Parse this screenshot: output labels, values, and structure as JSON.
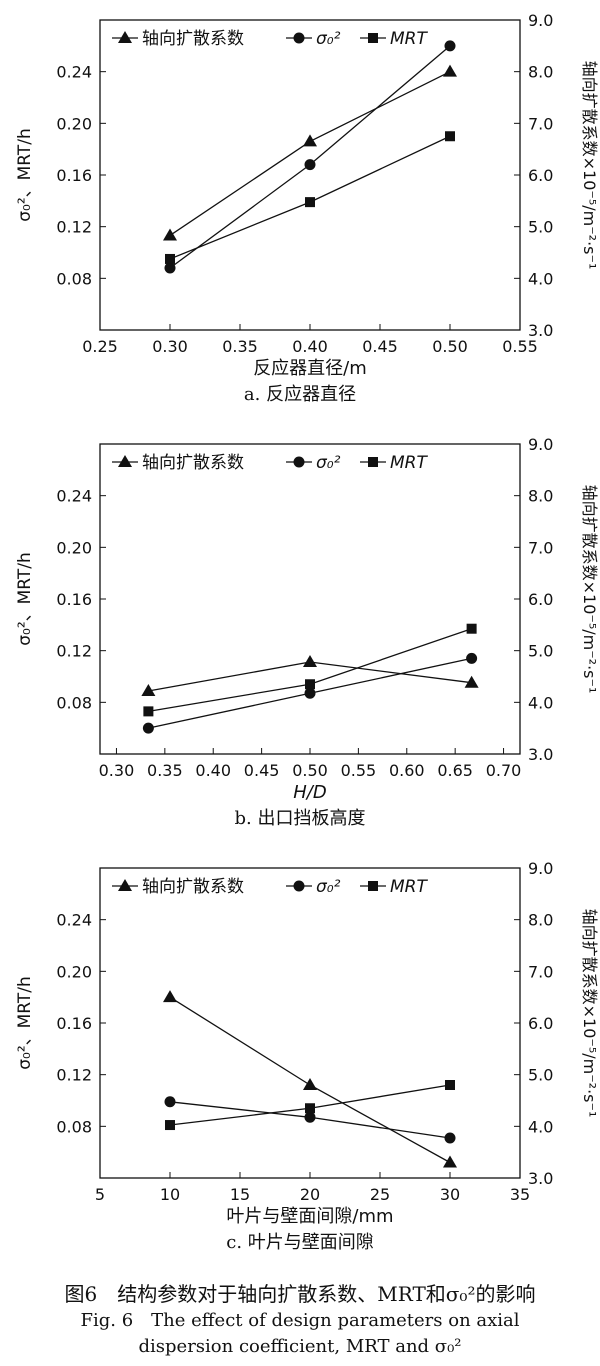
{
  "figure": {
    "caption_cn": "图6　结构参数对于轴向扩散系数、MRT和σ₀²的影响",
    "caption_en_line1": "Fig. 6　The effect of design parameters on axial",
    "caption_en_line2": "dispersion coefficient, MRT and σ₀²"
  },
  "colors": {
    "line": "#111111",
    "background": "#ffffff"
  },
  "chart_data": [
    {
      "type": "line",
      "panel_caption": "a. 反应器直径",
      "xlabel": "反应器直径/m",
      "ylabel_left": "σ₀²、MRT/h",
      "ylabel_right": "轴向扩散系数×10⁻⁵/m⁻²·s⁻¹",
      "xlim": [
        0.25,
        0.55
      ],
      "xticks": [
        "0.25",
        "0.30",
        "0.35",
        "0.40",
        "0.45",
        "0.50",
        "0.55"
      ],
      "ylim_left": [
        0.04,
        0.28
      ],
      "yticks_left": [
        "0.08",
        "0.12",
        "0.16",
        "0.20",
        "0.24"
      ],
      "ylim_right": [
        3.0,
        9.0
      ],
      "yticks_right": [
        "3.0",
        "4.0",
        "5.0",
        "6.0",
        "7.0",
        "8.0",
        "9.0"
      ],
      "legend_position": "top",
      "series": [
        {
          "name": "轴向扩散系数",
          "marker": "triangle",
          "axis": "right",
          "x": [
            0.3,
            0.4,
            0.5
          ],
          "values": [
            4.83,
            6.65,
            8.0
          ]
        },
        {
          "name": "σ₀²",
          "marker": "circle",
          "axis": "left",
          "x": [
            0.3,
            0.4,
            0.5
          ],
          "values": [
            0.088,
            0.168,
            0.26
          ]
        },
        {
          "name": "MRT",
          "marker": "square",
          "axis": "left",
          "x": [
            0.3,
            0.4,
            0.5
          ],
          "values": [
            0.095,
            0.139,
            0.19
          ]
        }
      ]
    },
    {
      "type": "line",
      "panel_caption": "b. 出口挡板高度",
      "xlabel": "H/D",
      "ylabel_left": "σ₀²、MRT/h",
      "ylabel_right": "轴向扩散系数×10⁻⁵/m⁻²·s⁻¹",
      "xlim": [
        0.283,
        0.717
      ],
      "xticks": [
        "0.30",
        "0.35",
        "0.40",
        "0.45",
        "0.50",
        "0.55",
        "0.60",
        "0.65",
        "0.70"
      ],
      "ylim_left": [
        0.04,
        0.28
      ],
      "yticks_left": [
        "0.08",
        "0.12",
        "0.16",
        "0.20",
        "0.24"
      ],
      "ylim_right": [
        3.0,
        9.0
      ],
      "yticks_right": [
        "3.0",
        "4.0",
        "5.0",
        "6.0",
        "7.0",
        "8.0",
        "9.0"
      ],
      "legend_position": "top",
      "series": [
        {
          "name": "轴向扩散系数",
          "marker": "triangle",
          "axis": "right",
          "x": [
            0.333,
            0.5,
            0.667
          ],
          "values": [
            4.22,
            4.78,
            4.38
          ]
        },
        {
          "name": "σ₀²",
          "marker": "circle",
          "axis": "left",
          "x": [
            0.333,
            0.5,
            0.667
          ],
          "values": [
            0.06,
            0.087,
            0.114
          ]
        },
        {
          "name": "MRT",
          "marker": "square",
          "axis": "left",
          "x": [
            0.333,
            0.5,
            0.667
          ],
          "values": [
            0.073,
            0.094,
            0.137
          ]
        }
      ]
    },
    {
      "type": "line",
      "panel_caption": "c. 叶片与壁面间隙",
      "xlabel": "叶片与壁面间隙/mm",
      "ylabel_left": "σ₀²、MRT/h",
      "ylabel_right": "轴向扩散系数×10⁻⁵/m⁻²·s⁻¹",
      "xlim": [
        5,
        35
      ],
      "xticks": [
        "5",
        "10",
        "15",
        "20",
        "25",
        "30",
        "35"
      ],
      "ylim_left": [
        0.04,
        0.28
      ],
      "yticks_left": [
        "0.08",
        "0.12",
        "0.16",
        "0.20",
        "0.24"
      ],
      "ylim_right": [
        3.0,
        9.0
      ],
      "yticks_right": [
        "3.0",
        "4.0",
        "5.0",
        "6.0",
        "7.0",
        "8.0",
        "9.0"
      ],
      "legend_position": "top",
      "series": [
        {
          "name": "轴向扩散系数",
          "marker": "triangle",
          "axis": "right",
          "x": [
            10,
            20,
            30
          ],
          "values": [
            6.5,
            4.8,
            3.3
          ]
        },
        {
          "name": "σ₀²",
          "marker": "circle",
          "axis": "left",
          "x": [
            10,
            20,
            30
          ],
          "values": [
            0.099,
            0.087,
            0.071
          ]
        },
        {
          "name": "MRT",
          "marker": "square",
          "axis": "left",
          "x": [
            10,
            20,
            30
          ],
          "values": [
            0.081,
            0.094,
            0.112
          ]
        }
      ]
    }
  ]
}
